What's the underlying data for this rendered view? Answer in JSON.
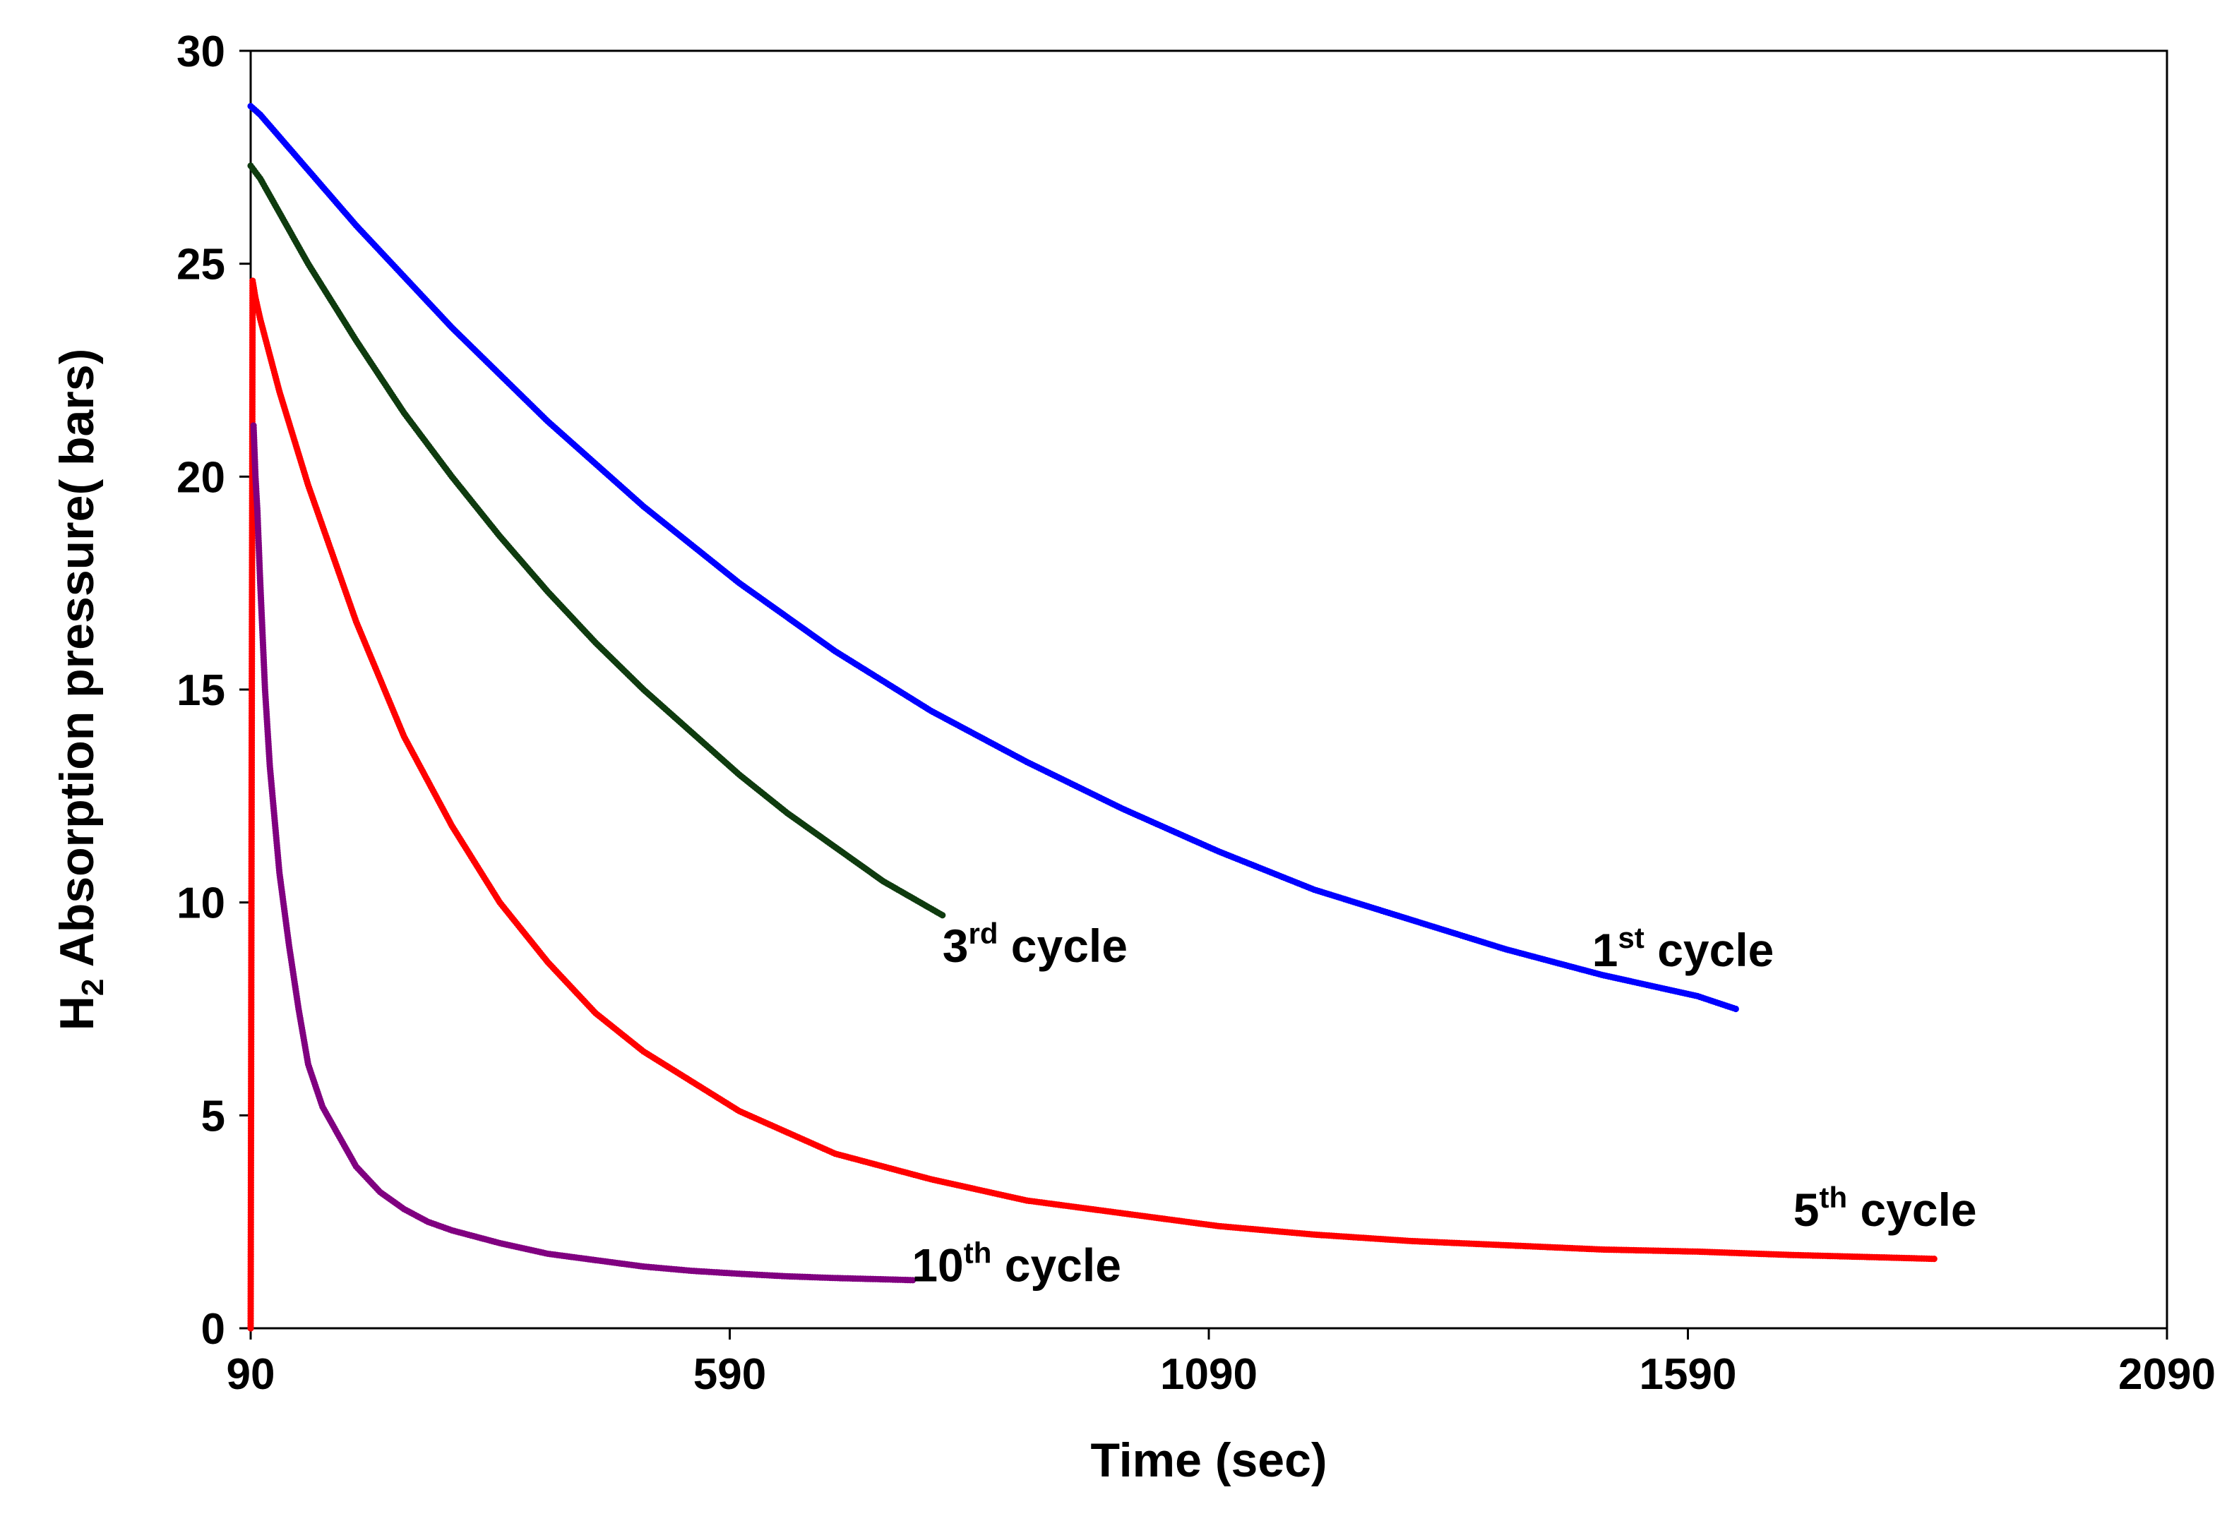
{
  "chart_data": {
    "type": "scatter",
    "xlabel": "Time (sec)",
    "ylabel": {
      "prefix": "H",
      "sub": "2",
      "rest": " Absorption pressure( bars)"
    },
    "xlim": [
      90,
      2090
    ],
    "ylim": [
      0,
      30
    ],
    "xticks": [
      90,
      590,
      1090,
      1590,
      2090
    ],
    "yticks": [
      0,
      5,
      10,
      15,
      20,
      25,
      30
    ],
    "grid": false,
    "legend": "none",
    "series": [
      {
        "key": "cycle1",
        "color": "#0000ff",
        "x": [
          90,
          100,
          150,
          200,
          300,
          400,
          500,
          600,
          700,
          800,
          900,
          1000,
          1100,
          1200,
          1300,
          1400,
          1500,
          1600,
          1640
        ],
        "y": [
          28.7,
          28.5,
          27.2,
          25.9,
          23.5,
          21.3,
          19.3,
          17.5,
          15.9,
          14.5,
          13.3,
          12.2,
          11.2,
          10.3,
          9.6,
          8.9,
          8.3,
          7.8,
          7.5
        ]
      },
      {
        "key": "cycle3",
        "color": "#0f3b0f",
        "x": [
          90,
          100,
          150,
          200,
          250,
          300,
          350,
          400,
          450,
          500,
          550,
          600,
          650,
          700,
          750,
          812
        ],
        "y": [
          27.3,
          27.0,
          25.0,
          23.2,
          21.5,
          20.0,
          18.6,
          17.3,
          16.1,
          15.0,
          14.0,
          13.0,
          12.1,
          11.3,
          10.5,
          9.7
        ]
      },
      {
        "key": "cycle5",
        "color": "#ff0000",
        "x": [
          90,
          92,
          95,
          100,
          120,
          150,
          200,
          250,
          300,
          350,
          400,
          450,
          500,
          600,
          700,
          800,
          900,
          1000,
          1100,
          1200,
          1300,
          1400,
          1500,
          1600,
          1700,
          1800,
          1847
        ],
        "y": [
          0,
          24.6,
          24.2,
          23.7,
          22.0,
          19.8,
          16.6,
          13.9,
          11.8,
          10.0,
          8.6,
          7.4,
          6.5,
          5.1,
          4.1,
          3.5,
          3.0,
          2.7,
          2.4,
          2.2,
          2.05,
          1.95,
          1.85,
          1.8,
          1.72,
          1.66,
          1.63
        ]
      },
      {
        "key": "cycle10",
        "color": "#800080",
        "x": [
          93,
          95,
          97,
          100,
          105,
          110,
          120,
          130,
          140,
          150,
          165,
          180,
          200,
          225,
          250,
          275,
          300,
          350,
          400,
          450,
          500,
          550,
          600,
          650,
          700,
          750,
          781
        ],
        "y": [
          21.2,
          20.0,
          19.2,
          17.5,
          15.0,
          13.2,
          10.7,
          9.0,
          7.5,
          6.2,
          5.2,
          4.6,
          3.8,
          3.2,
          2.8,
          2.5,
          2.3,
          2.0,
          1.75,
          1.6,
          1.45,
          1.35,
          1.28,
          1.22,
          1.18,
          1.15,
          1.13
        ]
      }
    ],
    "annotations": [
      {
        "key": "cycle1",
        "num": "1",
        "sup": "st",
        "rest": " cycle",
        "x": 1490,
        "y": 8.5
      },
      {
        "key": "cycle3",
        "num": "3",
        "sup": "rd",
        "rest": " cycle",
        "x": 812,
        "y": 8.6
      },
      {
        "key": "cycle5",
        "num": "5",
        "sup": "th",
        "rest": " cycle",
        "x": 1700,
        "y": 2.4
      },
      {
        "key": "cycle10",
        "num": "10",
        "sup": "th",
        "rest": " cycle",
        "x": 780,
        "y": 1.1
      }
    ]
  }
}
